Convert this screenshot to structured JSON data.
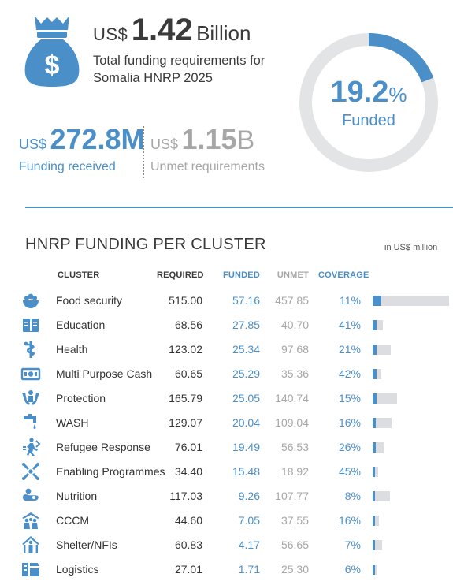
{
  "colors": {
    "accent": "#4b8fc9",
    "muted": "#a7a7a7",
    "text": "#333333",
    "bar_track": "#dcdde0",
    "donut_track": "#e3e4e6"
  },
  "header": {
    "icon": "money-bag-icon",
    "total_currency": "US$",
    "total_amount": "1.42",
    "total_unit": "Billion",
    "total_description": "Total funding requirements for Somalia HNRP 2025",
    "funded_currency": "US$",
    "funded_amount": "272.8M",
    "funded_label": "Funding received",
    "unmet_currency": "US$",
    "unmet_amount": "1.15",
    "unmet_unit": "B",
    "unmet_label": "Unmet requirements",
    "funded_percent": "19.2",
    "percent_sign": "%",
    "funded_percent_label": "Funded",
    "funded_fraction": 0.192
  },
  "section": {
    "title": "HNRP FUNDING PER CLUSTER",
    "unit_note": "in US$ million"
  },
  "table": {
    "columns": {
      "cluster": "CLUSTER",
      "required": "REQUIRED",
      "funded": "FUNDED",
      "unmet": "UNMET",
      "coverage": "COVERAGE"
    }
  },
  "chart_data": {
    "type": "table",
    "columns": [
      "CLUSTER",
      "REQUIRED",
      "FUNDED",
      "UNMET",
      "COVERAGE"
    ],
    "rows": [
      {
        "icon": "food-security-icon",
        "cluster": "Food security",
        "required": "515.00",
        "funded": "57.16",
        "unmet": "457.85",
        "coverage": "11%",
        "coverage_value": 11,
        "required_value": 515.0
      },
      {
        "icon": "education-icon",
        "cluster": "Education",
        "required": "68.56",
        "funded": "27.85",
        "unmet": "40.70",
        "coverage": "41%",
        "coverage_value": 41,
        "required_value": 68.56
      },
      {
        "icon": "health-icon",
        "cluster": "Health",
        "required": "123.02",
        "funded": "25.34",
        "unmet": "97.68",
        "coverage": "21%",
        "coverage_value": 21,
        "required_value": 123.02
      },
      {
        "icon": "cash-icon",
        "cluster": "Multi Purpose Cash",
        "required": "60.65",
        "funded": "25.29",
        "unmet": "35.36",
        "coverage": "42%",
        "coverage_value": 42,
        "required_value": 60.65
      },
      {
        "icon": "protection-icon",
        "cluster": "Protection",
        "required": "165.79",
        "funded": "25.05",
        "unmet": "140.74",
        "coverage": "15%",
        "coverage_value": 15,
        "required_value": 165.79
      },
      {
        "icon": "wash-icon",
        "cluster": "WASH",
        "required": "129.07",
        "funded": "20.04",
        "unmet": "109.04",
        "coverage": "16%",
        "coverage_value": 16,
        "required_value": 129.07
      },
      {
        "icon": "refugee-icon",
        "cluster": "Refugee  Response",
        "required": "76.01",
        "funded": "19.49",
        "unmet": "56.53",
        "coverage": "26%",
        "coverage_value": 26,
        "required_value": 76.01
      },
      {
        "icon": "enabling-programmes-icon",
        "cluster": "Enabling Programmes",
        "required": "34.40",
        "funded": "15.48",
        "unmet": "18.92",
        "coverage": "45%",
        "coverage_value": 45,
        "required_value": 34.4
      },
      {
        "icon": "nutrition-icon",
        "cluster": "Nutrition",
        "required": "117.03",
        "funded": "9.26",
        "unmet": "107.77",
        "coverage": "8%",
        "coverage_value": 8,
        "required_value": 117.03
      },
      {
        "icon": "cccm-icon",
        "cluster": "CCCM",
        "required": "44.60",
        "funded": "7.05",
        "unmet": "37.55",
        "coverage": "16%",
        "coverage_value": 16,
        "required_value": 44.6
      },
      {
        "icon": "shelter-icon",
        "cluster": "Shelter/NFIs",
        "required": "60.83",
        "funded": "4.17",
        "unmet": "56.65",
        "coverage": "7%",
        "coverage_value": 7,
        "required_value": 60.83
      },
      {
        "icon": "logistics-icon",
        "cluster": "Logistics",
        "required": "27.01",
        "funded": "1.71",
        "unmet": "25.30",
        "coverage": "6%",
        "coverage_value": 6,
        "required_value": 27.01
      }
    ]
  }
}
